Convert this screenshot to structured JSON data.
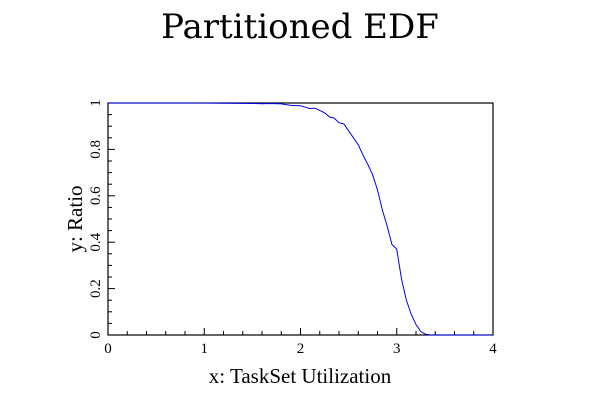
{
  "chart_data": {
    "type": "line",
    "title": "Partitioned EDF",
    "xlabel": "x: TaskSet Utilization",
    "ylabel": "y: Ratio",
    "xlim": [
      0,
      4
    ],
    "ylim": [
      0,
      1
    ],
    "x_ticks": [
      0,
      1,
      2,
      3,
      4
    ],
    "x_tick_labels": [
      "0",
      "1",
      "2",
      "3",
      "4"
    ],
    "y_ticks": [
      0,
      0.2,
      0.4,
      0.6,
      0.8,
      1
    ],
    "y_tick_labels": [
      "0",
      "0.2",
      "0.4",
      "0.6",
      "0.8",
      "1"
    ],
    "grid": false,
    "legend": "none",
    "line_color": "#0000ee",
    "series": [
      {
        "x": [
          0,
          0.5,
          1.0,
          1.5,
          1.6,
          1.7,
          1.8,
          1.9,
          2.0,
          2.05,
          2.1,
          2.15,
          2.2,
          2.25,
          2.3,
          2.35,
          2.4,
          2.45,
          2.5,
          2.55,
          2.6,
          2.65,
          2.7,
          2.75,
          2.8,
          2.85,
          2.9,
          2.95,
          3.0,
          3.05,
          3.1,
          3.15,
          3.2,
          3.25,
          3.3,
          3.35,
          3.4,
          3.5,
          4.0
        ],
        "y": [
          1.0,
          1.0,
          1.0,
          0.998,
          0.997,
          0.998,
          0.996,
          0.99,
          0.988,
          0.982,
          0.976,
          0.978,
          0.968,
          0.958,
          0.94,
          0.935,
          0.915,
          0.91,
          0.88,
          0.85,
          0.82,
          0.775,
          0.735,
          0.69,
          0.625,
          0.54,
          0.47,
          0.39,
          0.37,
          0.24,
          0.15,
          0.09,
          0.045,
          0.015,
          0.003,
          0.0,
          0.0,
          0.0,
          0.0
        ]
      }
    ]
  }
}
